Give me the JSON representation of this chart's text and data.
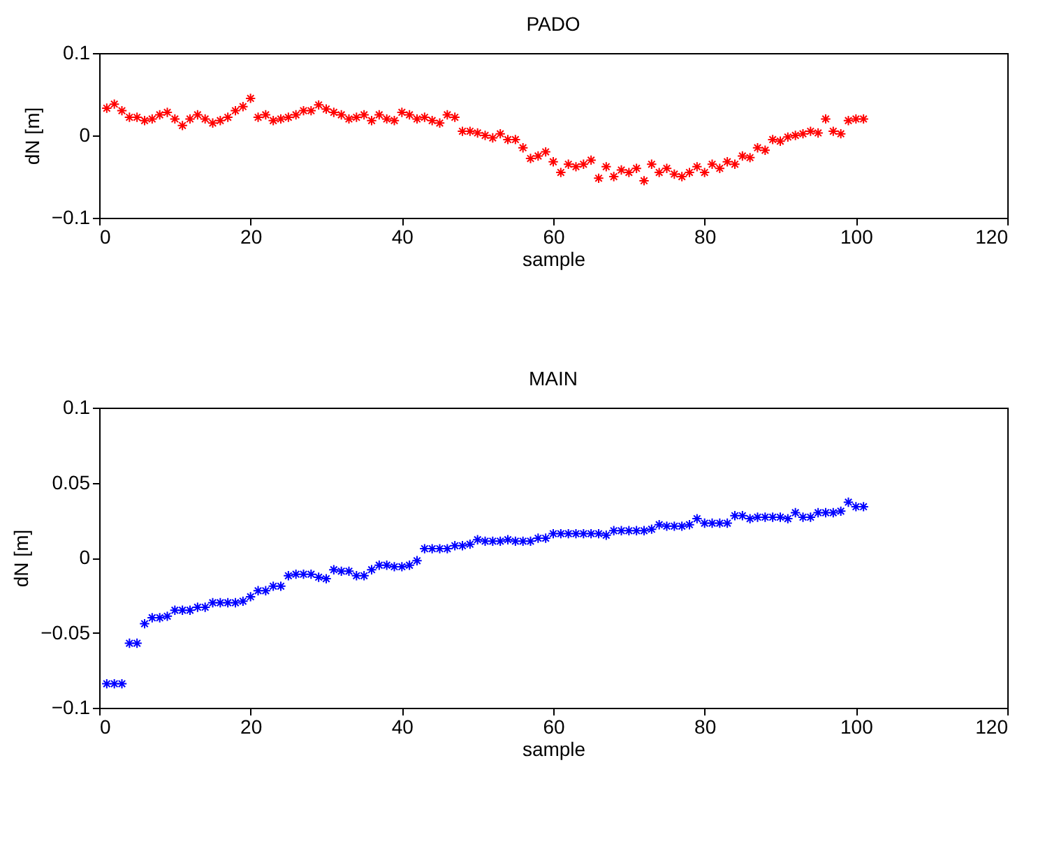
{
  "chart_data": [
    {
      "type": "scatter",
      "title": "PADO",
      "xlabel": "sample",
      "ylabel": "dN [m]",
      "marker": "cross",
      "grid": false,
      "xlim": [
        0,
        120
      ],
      "xticks": [
        0,
        20,
        40,
        60,
        80,
        100,
        120
      ],
      "ylim": [
        -0.1,
        0.1
      ],
      "yticks": [
        -0.1,
        0,
        0.1
      ],
      "x": [
        1,
        2,
        3,
        4,
        5,
        6,
        7,
        8,
        9,
        10,
        11,
        12,
        13,
        14,
        15,
        16,
        17,
        18,
        19,
        20,
        21,
        22,
        23,
        24,
        25,
        26,
        27,
        28,
        29,
        30,
        31,
        32,
        33,
        34,
        35,
        36,
        37,
        38,
        39,
        40,
        41,
        42,
        43,
        44,
        45,
        46,
        47,
        48,
        49,
        50,
        51,
        52,
        53,
        54,
        55,
        56,
        57,
        58,
        59,
        60,
        61,
        62,
        63,
        64,
        65,
        66,
        67,
        68,
        69,
        70,
        71,
        72,
        73,
        74,
        75,
        76,
        77,
        78,
        79,
        80,
        81,
        82,
        83,
        84,
        85,
        86,
        87,
        88,
        89,
        90,
        91,
        92,
        93,
        94,
        95,
        96,
        97,
        98,
        99,
        100,
        101
      ],
      "series": [
        {
          "color": "#ff0000",
          "values": [
            0.033,
            0.038,
            0.03,
            0.022,
            0.022,
            0.018,
            0.02,
            0.025,
            0.028,
            0.02,
            0.012,
            0.02,
            0.025,
            0.02,
            0.015,
            0.018,
            0.022,
            0.03,
            0.035,
            0.045,
            0.022,
            0.025,
            0.018,
            0.02,
            0.022,
            0.025,
            0.03,
            0.03,
            0.037,
            0.032,
            0.028,
            0.025,
            0.02,
            0.022,
            0.025,
            0.018,
            0.025,
            0.02,
            0.018,
            0.028,
            0.025,
            0.02,
            0.022,
            0.018,
            0.015,
            0.025,
            0.022,
            0.005,
            0.005,
            0.003,
            0.0,
            -0.003,
            0.002,
            -0.005,
            -0.005,
            -0.015,
            -0.028,
            -0.025,
            -0.02,
            -0.032,
            -0.045,
            -0.035,
            -0.038,
            -0.035,
            -0.03,
            -0.052,
            -0.038,
            -0.05,
            -0.042,
            -0.045,
            -0.04,
            -0.055,
            -0.035,
            -0.045,
            -0.04,
            -0.047,
            -0.05,
            -0.045,
            -0.038,
            -0.045,
            -0.035,
            -0.04,
            -0.032,
            -0.035,
            -0.025,
            -0.027,
            -0.015,
            -0.018,
            -0.005,
            -0.007,
            -0.002,
            0.0,
            0.002,
            0.005,
            0.003,
            0.02,
            0.005,
            0.002,
            0.018,
            0.02,
            0.02
          ]
        }
      ]
    },
    {
      "type": "scatter",
      "title": "MAIN",
      "xlabel": "sample",
      "ylabel": "dN [m]",
      "marker": "cross",
      "grid": false,
      "xlim": [
        0,
        120
      ],
      "xticks": [
        0,
        20,
        40,
        60,
        80,
        100,
        120
      ],
      "ylim": [
        -0.1,
        0.1
      ],
      "yticks": [
        -0.1,
        -0.05,
        0,
        0.05,
        0.1
      ],
      "x": [
        1,
        2,
        3,
        4,
        5,
        6,
        7,
        8,
        9,
        10,
        11,
        12,
        13,
        14,
        15,
        16,
        17,
        18,
        19,
        20,
        21,
        22,
        23,
        24,
        25,
        26,
        27,
        28,
        29,
        30,
        31,
        32,
        33,
        34,
        35,
        36,
        37,
        38,
        39,
        40,
        41,
        42,
        43,
        44,
        45,
        46,
        47,
        48,
        49,
        50,
        51,
        52,
        53,
        54,
        55,
        56,
        57,
        58,
        59,
        60,
        61,
        62,
        63,
        64,
        65,
        66,
        67,
        68,
        69,
        70,
        71,
        72,
        73,
        74,
        75,
        76,
        77,
        78,
        79,
        80,
        81,
        82,
        83,
        84,
        85,
        86,
        87,
        88,
        89,
        90,
        91,
        92,
        93,
        94,
        95,
        96,
        97,
        98,
        99,
        100,
        101
      ],
      "series": [
        {
          "color": "#0000ff",
          "values": [
            -0.084,
            -0.084,
            -0.084,
            -0.057,
            -0.057,
            -0.044,
            -0.04,
            -0.04,
            -0.039,
            -0.035,
            -0.035,
            -0.035,
            -0.033,
            -0.033,
            -0.03,
            -0.03,
            -0.03,
            -0.03,
            -0.029,
            -0.026,
            -0.022,
            -0.022,
            -0.019,
            -0.019,
            -0.012,
            -0.011,
            -0.011,
            -0.011,
            -0.013,
            -0.014,
            -0.008,
            -0.009,
            -0.009,
            -0.012,
            -0.012,
            -0.008,
            -0.005,
            -0.005,
            -0.006,
            -0.006,
            -0.005,
            -0.002,
            0.006,
            0.006,
            0.006,
            0.006,
            0.008,
            0.008,
            0.009,
            0.012,
            0.011,
            0.011,
            0.011,
            0.012,
            0.011,
            0.011,
            0.011,
            0.013,
            0.013,
            0.016,
            0.016,
            0.016,
            0.016,
            0.016,
            0.016,
            0.016,
            0.015,
            0.018,
            0.018,
            0.018,
            0.018,
            0.018,
            0.019,
            0.022,
            0.021,
            0.021,
            0.021,
            0.022,
            0.026,
            0.023,
            0.023,
            0.023,
            0.023,
            0.028,
            0.028,
            0.026,
            0.027,
            0.027,
            0.027,
            0.027,
            0.026,
            0.03,
            0.027,
            0.027,
            0.03,
            0.03,
            0.03,
            0.031,
            0.037,
            0.034,
            0.034
          ]
        }
      ]
    }
  ]
}
